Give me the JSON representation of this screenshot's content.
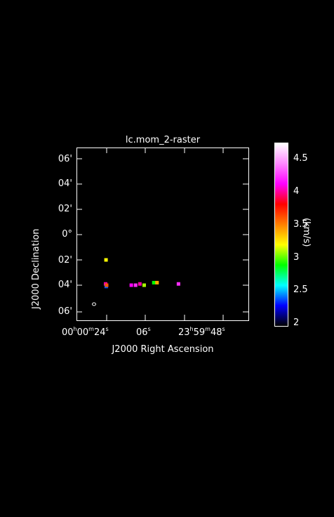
{
  "figure": {
    "title": "lc.mom_2-raster",
    "xlabel": "J2000 Right Ascension",
    "ylabel": "J2000 Declination",
    "y_ticks": [
      "06'",
      "04'",
      "02'",
      "0°",
      "02'",
      "04'",
      "06'"
    ],
    "x_ticks": [
      {
        "parts": [
          "00",
          "h",
          "00",
          "m",
          "24",
          "s"
        ]
      },
      {
        "parts": [
          "",
          "",
          "",
          "",
          "06",
          "s"
        ]
      },
      {
        "parts": [
          "23",
          "h",
          "59",
          "m",
          "48",
          "s"
        ]
      }
    ],
    "colorbar": {
      "label": "(km/s)",
      "ticks": [
        "4.5",
        "4",
        "3.5",
        "3",
        "2.5",
        "2"
      ],
      "range": [
        2,
        4.7
      ],
      "colors": [
        "#000000",
        "#0000ff",
        "#00ffff",
        "#00ff00",
        "#ffff00",
        "#ff8000",
        "#ff0000",
        "#ff00ff",
        "#ff88ff",
        "#ffffff"
      ]
    }
  },
  "chart_data": {
    "type": "heatmap",
    "title": "lc.mom_2-raster",
    "xlabel": "J2000 Right Ascension",
    "ylabel": "J2000 Declination",
    "colorbar_label": "(km/s)",
    "value_range": [
      2,
      4.7
    ],
    "pixels": [
      {
        "ra_s": 24.3,
        "dec_arcmin": -2.0,
        "value": 3.2
      },
      {
        "ra_s": 24.5,
        "dec_arcmin": -3.9,
        "value": 4.0
      },
      {
        "ra_s": 24.2,
        "dec_arcmin": -4.1,
        "value": 2.4
      },
      {
        "ra_s": 24.0,
        "dec_arcmin": -4.0,
        "value": 3.6
      },
      {
        "ra_s": 12.5,
        "dec_arcmin": -4.0,
        "value": 4.1
      },
      {
        "ra_s": 10.5,
        "dec_arcmin": -4.0,
        "value": 4.2
      },
      {
        "ra_s": 8.5,
        "dec_arcmin": -3.9,
        "value": 4.0
      },
      {
        "ra_s": 6.5,
        "dec_arcmin": -4.0,
        "value": 3.1
      },
      {
        "ra_s": 2.0,
        "dec_arcmin": -3.8,
        "value": 2.9
      },
      {
        "ra_s": 0.5,
        "dec_arcmin": -3.8,
        "value": 3.4
      },
      {
        "ra_s": -9.5,
        "dec_arcmin": -3.9,
        "value": 4.2
      }
    ]
  }
}
